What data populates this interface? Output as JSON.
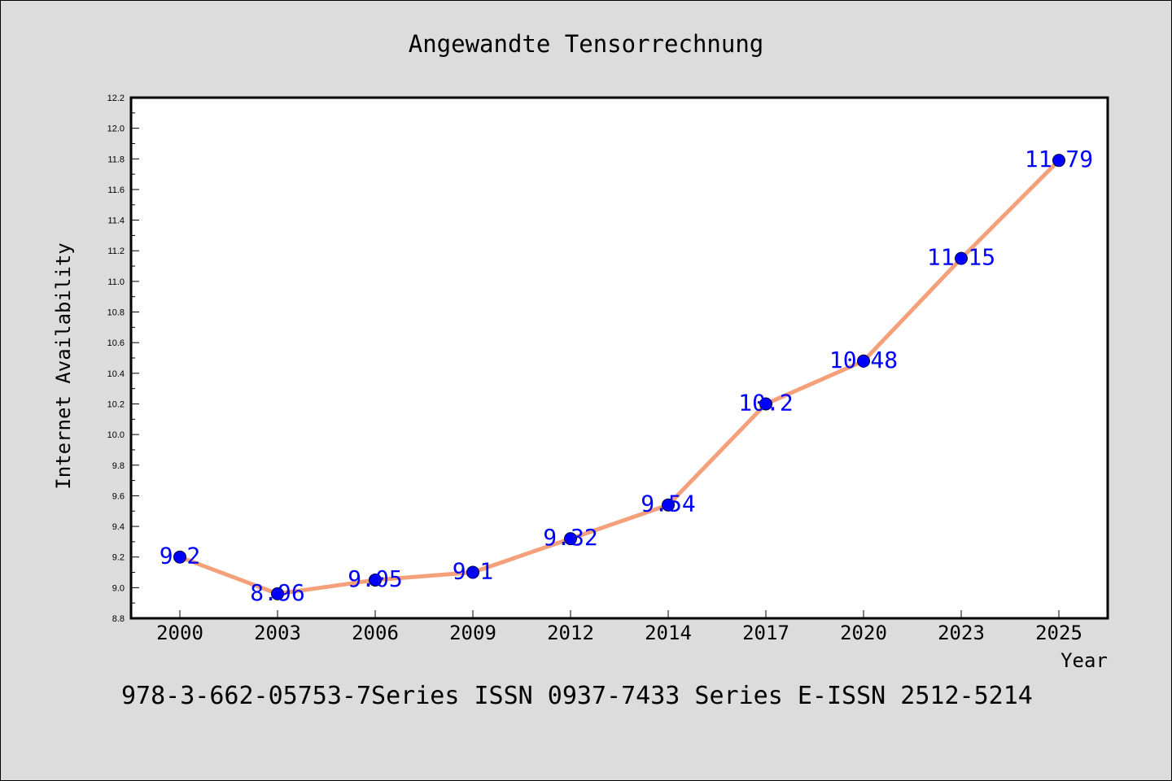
{
  "chart_data": {
    "type": "line",
    "title": "Angewandte Tensorrechnung",
    "xlabel": "Year",
    "ylabel": "Internet Availability",
    "categories": [
      "2000",
      "2003",
      "2006",
      "2009",
      "2012",
      "2014",
      "2017",
      "2020",
      "2023",
      "2025"
    ],
    "values": [
      9.2,
      8.96,
      9.05,
      9.1,
      9.32,
      9.54,
      10.2,
      10.48,
      11.15,
      11.79
    ],
    "data_labels": [
      "9.2",
      "8.96",
      "9.05",
      "9.1",
      "9.32",
      "9.54",
      "10.2",
      "10.48",
      "11.15",
      "11.79"
    ],
    "ylim": [
      8.8,
      12.2
    ],
    "yticks": [
      "8.8",
      "9.0",
      "9.2",
      "9.4",
      "9.6",
      "9.8",
      "10.0",
      "10.2",
      "10.4",
      "10.6",
      "10.8",
      "11.0",
      "11.2",
      "11.4",
      "11.6",
      "11.8",
      "12.0",
      "12.2"
    ],
    "grid": false,
    "legend": "none",
    "colors": {
      "line": "#f4a07a",
      "marker": "#0000ff",
      "data_label": "#0000ff",
      "plot_background": "#ffffff",
      "page_background": "#dcdcdc"
    }
  },
  "footer": {
    "text": "978-3-662-05753-7Series ISSN 0937-7433 Series E-ISSN 2512-5214"
  }
}
